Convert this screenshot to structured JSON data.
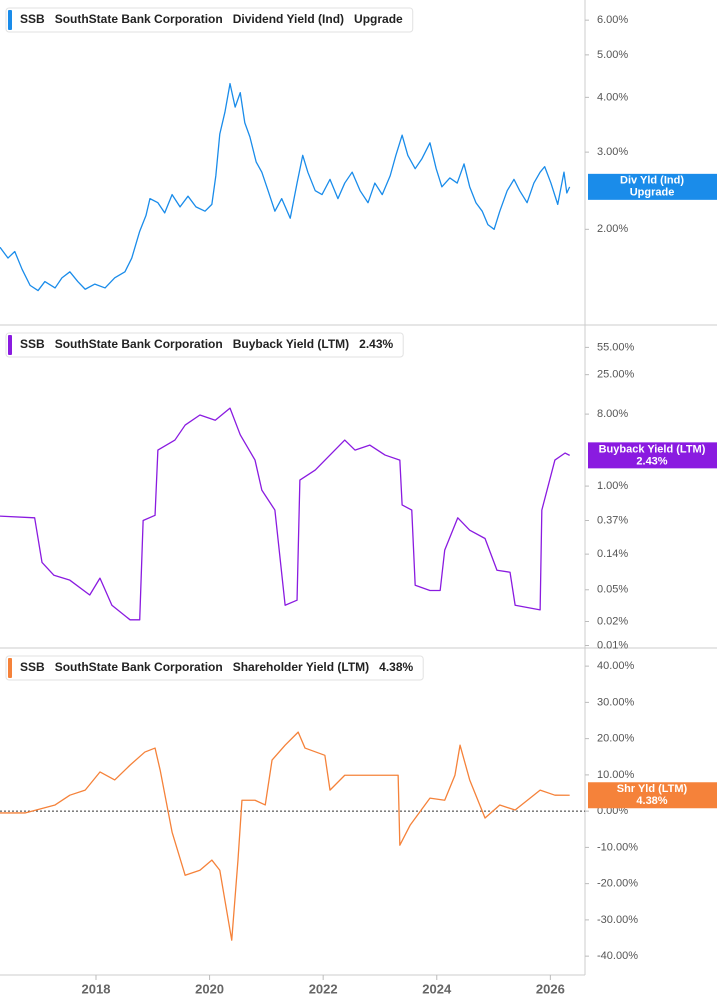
{
  "chart_data": [
    {
      "type": "line",
      "ticker": "SSB",
      "company": "SouthState Bank Corporation",
      "status": "Upgrade",
      "log_scale": true,
      "ylim": [
        1.21,
        6.67
      ],
      "xlim": [
        2016.31,
        2026.61
      ],
      "yticks": [
        {
          "value": 2,
          "label": "2.00%"
        },
        {
          "value": 3,
          "label": "3.00%"
        },
        {
          "value": 4,
          "label": "4.00%"
        },
        {
          "value": 5,
          "label": "5.00%"
        },
        {
          "value": 6,
          "label": "6.00%"
        }
      ],
      "x": [
        2016.31,
        2016.45,
        2016.57,
        2016.7,
        2016.84,
        2016.98,
        2017.1,
        2017.28,
        2017.4,
        2017.54,
        2017.68,
        2017.81,
        2017.98,
        2018.16,
        2018.33,
        2018.51,
        2018.63,
        2018.77,
        2018.88,
        2018.95,
        2019.09,
        2019.21,
        2019.34,
        2019.48,
        2019.62,
        2019.76,
        2019.92,
        2020.04,
        2020.11,
        2020.18,
        2020.27,
        2020.36,
        2020.45,
        2020.54,
        2020.62,
        2020.71,
        2020.82,
        2020.92,
        2021.03,
        2021.15,
        2021.27,
        2021.42,
        2021.54,
        2021.64,
        2021.73,
        2021.86,
        2021.98,
        2022.12,
        2022.26,
        2022.38,
        2022.51,
        2022.65,
        2022.79,
        2022.91,
        2023.04,
        2023.18,
        2023.28,
        2023.39,
        2023.49,
        2023.62,
        2023.74,
        2023.88,
        2023.99,
        2024.09,
        2024.23,
        2024.36,
        2024.48,
        2024.58,
        2024.69,
        2024.8,
        2024.9,
        2025.01,
        2025.11,
        2025.24,
        2025.36,
        2025.46,
        2025.59,
        2025.71,
        2025.82,
        2025.9,
        2026.01,
        2026.13,
        2026.24,
        2026.29,
        2026.34
      ],
      "series": [
        {
          "name": "Dividend Yield (Ind)",
          "short_name": "Div Yld (Ind)",
          "color": "#1a8cea",
          "values": [
            1.82,
            1.72,
            1.78,
            1.62,
            1.49,
            1.45,
            1.52,
            1.47,
            1.55,
            1.6,
            1.52,
            1.46,
            1.5,
            1.47,
            1.55,
            1.6,
            1.72,
            1.98,
            2.15,
            2.35,
            2.3,
            2.18,
            2.4,
            2.25,
            2.38,
            2.25,
            2.2,
            2.28,
            2.65,
            3.3,
            3.7,
            4.3,
            3.8,
            4.1,
            3.5,
            3.25,
            2.85,
            2.7,
            2.45,
            2.2,
            2.35,
            2.12,
            2.55,
            2.95,
            2.7,
            2.45,
            2.4,
            2.6,
            2.35,
            2.55,
            2.7,
            2.45,
            2.3,
            2.55,
            2.4,
            2.65,
            2.95,
            3.28,
            2.95,
            2.75,
            2.9,
            3.15,
            2.75,
            2.5,
            2.62,
            2.55,
            2.82,
            2.5,
            2.3,
            2.2,
            2.05,
            2.0,
            2.2,
            2.45,
            2.6,
            2.45,
            2.3,
            2.55,
            2.7,
            2.78,
            2.55,
            2.28,
            2.7,
            2.42,
            2.5
          ]
        }
      ]
    },
    {
      "type": "line",
      "ticker": "SSB",
      "company": "SouthState Bank Corporation",
      "log_scale": true,
      "ylim": [
        0.0093,
        105
      ],
      "xlim": [
        2016.31,
        2026.61
      ],
      "yticks": [
        {
          "value": 0.01,
          "label": "0.01%"
        },
        {
          "value": 0.02,
          "label": "0.02%"
        },
        {
          "value": 0.05,
          "label": "0.05%"
        },
        {
          "value": 0.14,
          "label": "0.14%"
        },
        {
          "value": 0.37,
          "label": "0.37%"
        },
        {
          "value": 1,
          "label": "1.00%"
        },
        {
          "value": 8,
          "label": "8.00%"
        },
        {
          "value": 25,
          "label": "25.00%"
        },
        {
          "value": 55,
          "label": "55.00%"
        }
      ],
      "x": [
        2016.31,
        2016.92,
        2017.05,
        2017.26,
        2017.54,
        2017.89,
        2018.07,
        2018.28,
        2018.6,
        2018.77,
        2018.83,
        2019.04,
        2019.09,
        2019.39,
        2019.57,
        2019.83,
        2020.1,
        2020.36,
        2020.54,
        2020.8,
        2020.92,
        2021.15,
        2021.33,
        2021.54,
        2021.59,
        2021.86,
        2022.12,
        2022.38,
        2022.56,
        2022.82,
        2023.09,
        2023.35,
        2023.39,
        2023.56,
        2023.62,
        2023.88,
        2024.06,
        2024.14,
        2024.37,
        2024.58,
        2024.85,
        2025.06,
        2025.29,
        2025.38,
        2025.82,
        2025.85,
        2026.08,
        2026.26,
        2026.34
      ],
      "series": [
        {
          "name": "Buyback Yield (LTM)",
          "short_name": "Buyback Yield (LTM)",
          "color": "#8a1be0",
          "current": {
            "value": 2.43,
            "label": "2.43%"
          },
          "values": [
            0.42,
            0.4,
            0.11,
            0.076,
            0.066,
            0.043,
            0.07,
            0.032,
            0.021,
            0.021,
            0.37,
            0.43,
            2.83,
            3.78,
            5.83,
            7.8,
            6.7,
            9.5,
            4.4,
            2.12,
            0.89,
            0.5,
            0.032,
            0.037,
            1.19,
            1.59,
            2.45,
            3.78,
            2.83,
            3.27,
            2.45,
            2.12,
            0.58,
            0.5,
            0.057,
            0.049,
            0.049,
            0.157,
            0.4,
            0.28,
            0.22,
            0.088,
            0.083,
            0.032,
            0.028,
            0.5,
            2.12,
            2.6,
            2.43
          ]
        }
      ]
    },
    {
      "type": "line",
      "ticker": "SSB",
      "company": "SouthState Bank Corporation",
      "log_scale": false,
      "zero_line": true,
      "ylim": [
        -45.2,
        45
      ],
      "xlim": [
        2016.31,
        2026.61
      ],
      "xticks": [
        2018,
        2020,
        2022,
        2024,
        2026
      ],
      "yticks": [
        {
          "value": -40,
          "label": "-40.00%"
        },
        {
          "value": -30,
          "label": "-30.00%"
        },
        {
          "value": -20,
          "label": "-20.00%"
        },
        {
          "value": -10,
          "label": "-10.00%"
        },
        {
          "value": 0,
          "label": "0.00%"
        },
        {
          "value": 10,
          "label": "10.00%"
        },
        {
          "value": 20,
          "label": "20.00%"
        },
        {
          "value": 30,
          "label": "30.00%"
        },
        {
          "value": 40,
          "label": "40.00%"
        }
      ],
      "x": [
        2016.31,
        2016.75,
        2017.28,
        2017.54,
        2017.81,
        2018.07,
        2018.33,
        2018.6,
        2018.86,
        2019.04,
        2019.13,
        2019.34,
        2019.57,
        2019.83,
        2020.04,
        2020.18,
        2020.27,
        2020.39,
        2020.5,
        2020.57,
        2020.8,
        2020.98,
        2021.1,
        2021.33,
        2021.56,
        2021.68,
        2022.03,
        2022.12,
        2022.38,
        2022.91,
        2023.32,
        2023.35,
        2023.53,
        2023.88,
        2024.14,
        2024.32,
        2024.41,
        2024.58,
        2024.85,
        2025.11,
        2025.38,
        2025.82,
        2026.08,
        2026.34
      ],
      "series": [
        {
          "name": "Shareholder Yield (LTM)",
          "short_name": "Shr Yld (LTM)",
          "color": "#f5823a",
          "current": {
            "value": 4.38,
            "label": "4.38%"
          },
          "values": [
            -0.5,
            -0.5,
            1.7,
            4.4,
            5.8,
            10.8,
            8.6,
            12.7,
            16.3,
            17.4,
            11.3,
            -5.8,
            -17.7,
            -16.3,
            -13.5,
            -16.3,
            -24.6,
            -35.6,
            -13.5,
            3.0,
            3.0,
            1.7,
            14.1,
            18.2,
            21.8,
            17.4,
            15.4,
            5.8,
            9.9,
            9.9,
            9.9,
            -9.4,
            -3.9,
            3.6,
            3.0,
            9.9,
            18.2,
            8.6,
            -1.9,
            1.7,
            0.3,
            5.8,
            4.4,
            4.38
          ]
        }
      ]
    }
  ]
}
